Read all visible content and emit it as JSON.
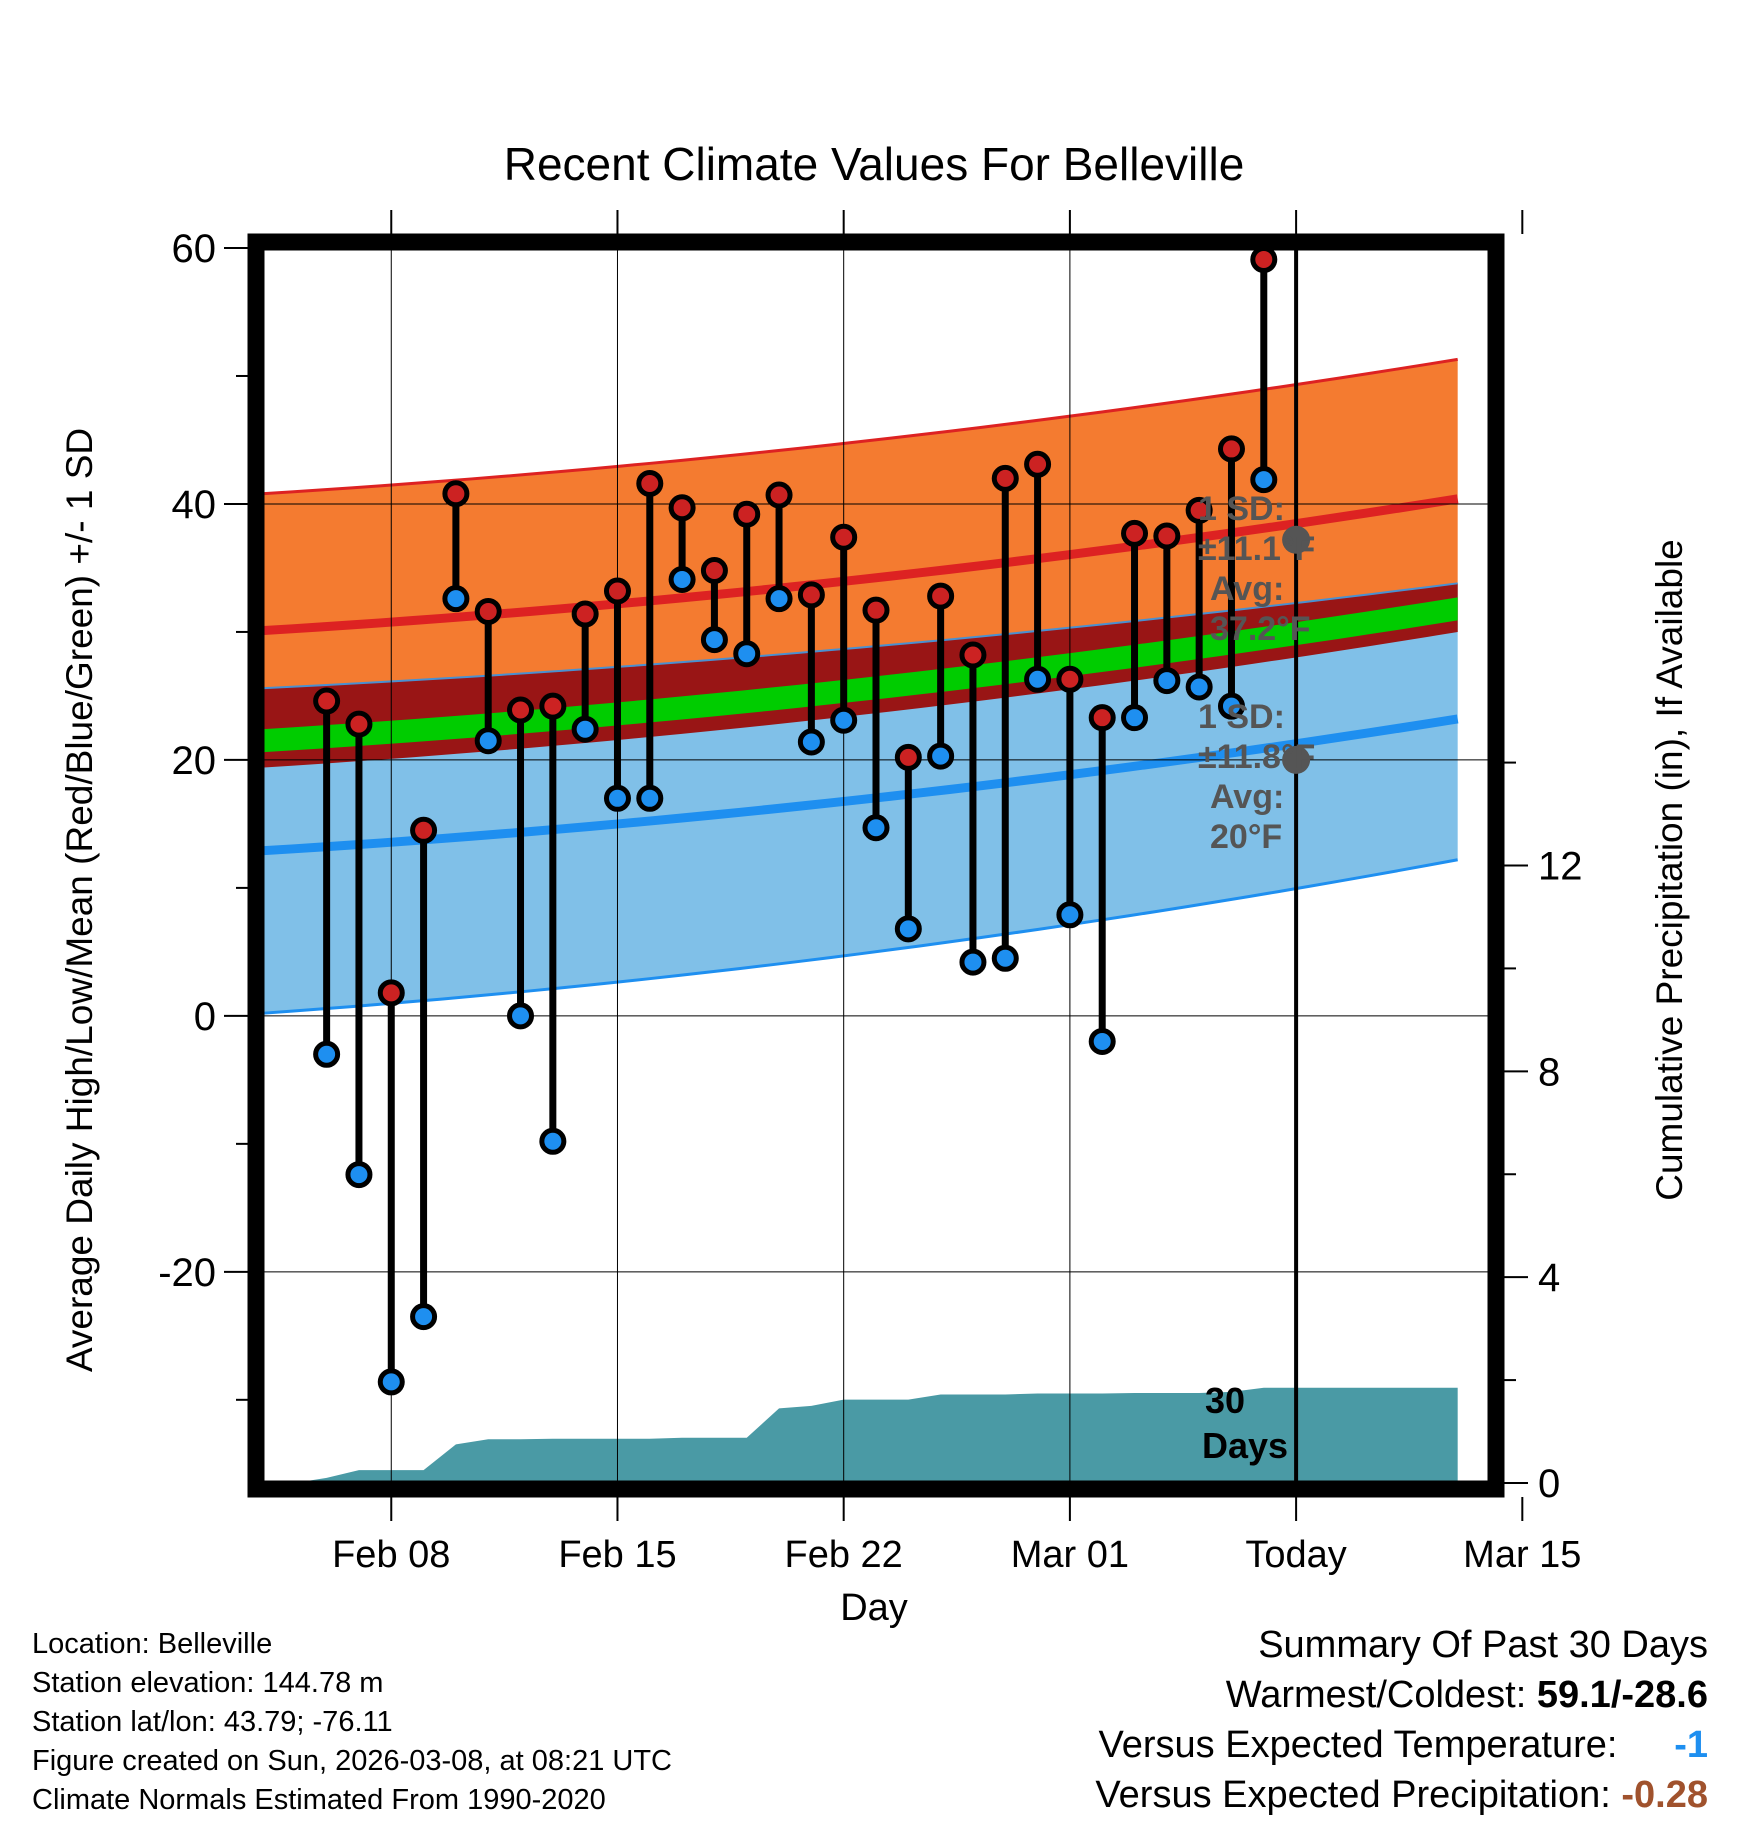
{
  "chart_data": {
    "type": "line",
    "title": "Recent Climate Values For Belleville",
    "xlabel": "Day",
    "ylabel": "Average Daily High/Low/Mean (Red/Blue/Green) +/- 1 SD",
    "y2label": "Cumulative Precipitation (in), If Available",
    "xlim": [
      4,
      42
    ],
    "ylim": [
      -36.5,
      60
    ],
    "y2lim": [
      0,
      24
    ],
    "yticks": [
      "60",
      "40",
      "20",
      "0",
      "-20"
    ],
    "yticks_values": [
      60,
      40,
      20,
      0,
      -20
    ],
    "y2ticks": [
      "12",
      "8",
      "4",
      "0"
    ],
    "y2ticks_values": [
      12,
      8,
      4,
      0
    ],
    "xticks": [
      "Feb 08",
      "Feb 15",
      "Feb 22",
      "Mar 01",
      "Today",
      "Mar 15"
    ],
    "xticks_values": [
      8,
      15,
      22,
      29,
      36,
      43
    ],
    "today_x": 36,
    "today_label_1": "30",
    "today_label_2": "Days",
    "normals": {
      "x": [
        4,
        41
      ],
      "high_mean": [
        30.1,
        40.4
      ],
      "high_plus_sd": [
        40.8,
        51.3
      ],
      "high_minus_sd": [
        19.4,
        30.0
      ],
      "low_mean": [
        12.9,
        23.2
      ],
      "low_plus_sd": [
        25.6,
        33.8
      ],
      "low_minus_sd": [
        0.2,
        12.2
      ],
      "mean_mean": [
        21.5,
        31.8
      ],
      "mean_band_half": [
        0.9,
        0.9
      ]
    },
    "high_annotation": {
      "line1": "1 SD:",
      "line2": "±11.1°F",
      "line3": "Avg:",
      "line4": "37.2°F",
      "avg": 37.2
    },
    "low_annotation": {
      "line1": "1 SD:",
      "line2": "±11.8°F",
      "line3": "Avg:",
      "line4": "20°F",
      "avg": 20
    },
    "series": [
      {
        "name": "High",
        "color": "#cc2222",
        "x": [
          6,
          7,
          8,
          9,
          10,
          11,
          12,
          13,
          14,
          15,
          16,
          17,
          18,
          19,
          20,
          21,
          22,
          23,
          24,
          25,
          26,
          27,
          28,
          29,
          30,
          31,
          32,
          33,
          34,
          35
        ],
        "values": [
          24.6,
          22.8,
          1.8,
          14.5,
          40.8,
          31.6,
          23.9,
          24.2,
          31.4,
          33.2,
          41.6,
          39.7,
          34.8,
          39.2,
          40.7,
          32.9,
          37.4,
          31.7,
          20.2,
          32.8,
          28.2,
          42.0,
          43.1,
          26.3,
          23.3,
          37.7,
          37.5,
          39.5,
          44.3,
          59.1
        ]
      },
      {
        "name": "Low",
        "color": "#1e8ff0",
        "x": [
          6,
          7,
          8,
          9,
          10,
          11,
          12,
          13,
          14,
          15,
          16,
          17,
          18,
          19,
          20,
          21,
          22,
          23,
          24,
          25,
          26,
          27,
          28,
          29,
          30,
          31,
          32,
          33,
          34,
          35
        ],
        "values": [
          -3.0,
          -12.4,
          -28.6,
          -23.5,
          32.6,
          21.5,
          0.0,
          -9.8,
          22.4,
          17.0,
          17.0,
          34.1,
          29.4,
          28.3,
          32.6,
          21.4,
          23.1,
          14.7,
          6.8,
          20.3,
          4.2,
          4.5,
          26.3,
          7.9,
          -2.0,
          23.3,
          26.2,
          25.7,
          24.2,
          41.9
        ]
      }
    ],
    "precipitation": {
      "x": [
        5,
        6,
        7,
        8,
        9,
        10,
        11,
        12,
        13,
        14,
        15,
        16,
        17,
        18,
        19,
        20,
        21,
        22,
        23,
        24,
        25,
        26,
        27,
        28,
        29,
        30,
        31,
        32,
        33,
        34,
        35,
        36,
        37,
        38,
        39,
        40,
        41
      ],
      "values": [
        0.0,
        0.1,
        0.25,
        0.25,
        0.25,
        0.75,
        0.85,
        0.85,
        0.86,
        0.86,
        0.86,
        0.86,
        0.88,
        0.88,
        0.88,
        1.45,
        1.5,
        1.62,
        1.62,
        1.62,
        1.72,
        1.72,
        1.72,
        1.74,
        1.74,
        1.74,
        1.75,
        1.75,
        1.75,
        1.77,
        1.85,
        1.85,
        1.85,
        1.85,
        1.85,
        1.85,
        1.85
      ]
    }
  },
  "footer": {
    "location": "Location: Belleville",
    "elevation": "Station elevation: 144.78 m",
    "latlon": "Station lat/lon: 43.79; -76.11",
    "created": "Figure created on Sun, 2026-03-08, at 08:21 UTC",
    "normals": "Climate Normals Estimated From 1990-2020"
  },
  "summary": {
    "title": "Summary Of Past 30 Days",
    "warm_cold_label": "Warmest/Coldest:",
    "warm_cold_value": "59.1/-28.6",
    "temp_label": "Versus Expected Temperature:",
    "temp_value": "-1",
    "precip_label": "Versus Expected Precipitation:",
    "precip_value": "-0.28",
    "temp_color": "#1e8ff0",
    "precip_color": "#a0522d"
  }
}
